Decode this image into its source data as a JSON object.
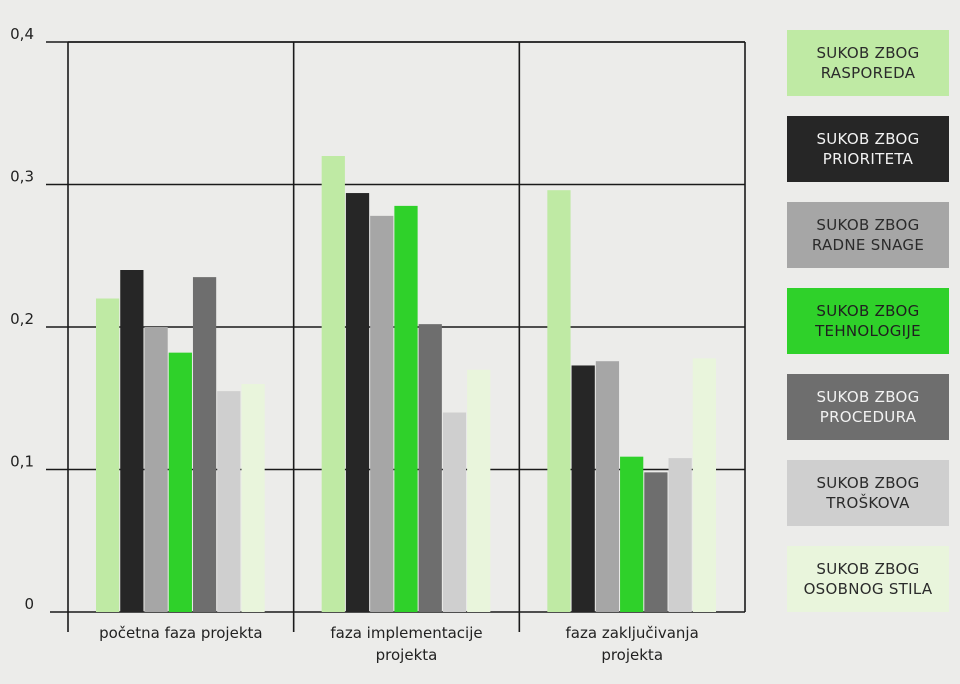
{
  "chart_data": {
    "type": "bar",
    "categories": [
      "početna faza projekta",
      "faza  implementacije\nprojekta",
      "faza  zaključivanja\nprojekta"
    ],
    "series": [
      {
        "name": "SUKOB ZBOG\nRASPOREDA",
        "color": "#bfeaa4",
        "text_color": "#2b2b2b",
        "values": [
          0.22,
          0.32,
          0.296
        ]
      },
      {
        "name": "SUKOB ZBOG\nPRIORITETA",
        "color": "#262626",
        "text_color": "#f2f2f2",
        "values": [
          0.24,
          0.294,
          0.173
        ]
      },
      {
        "name": "SUKOB ZBOG\nRADNE SNAGE",
        "color": "#a6a6a6",
        "text_color": "#2b2b2b",
        "values": [
          0.2,
          0.278,
          0.176
        ]
      },
      {
        "name": "SUKOB ZBOG\nTEHNOLOGIJE",
        "color": "#2fd12a",
        "text_color": "#1f1f1f",
        "values": [
          0.182,
          0.285,
          0.109
        ]
      },
      {
        "name": "SUKOB ZBOG\nPROCEDURA",
        "color": "#6e6e6e",
        "text_color": "#f2f2f2",
        "values": [
          0.235,
          0.202,
          0.098
        ]
      },
      {
        "name": "SUKOB ZBOG\nTROŠKOVA",
        "color": "#cfcfcf",
        "text_color": "#2b2b2b",
        "values": [
          0.155,
          0.14,
          0.108
        ]
      },
      {
        "name": "SUKOB ZBOG\nOSOBNOG STILA",
        "color": "#e9f5dc",
        "text_color": "#2b2b2b",
        "values": [
          0.16,
          0.17,
          0.178
        ]
      }
    ],
    "yticks": [
      "0",
      "0,1",
      "0,2",
      "0,3",
      "0,4"
    ],
    "ylim": [
      0,
      0.4
    ],
    "grid": true,
    "legend_position": "right"
  }
}
